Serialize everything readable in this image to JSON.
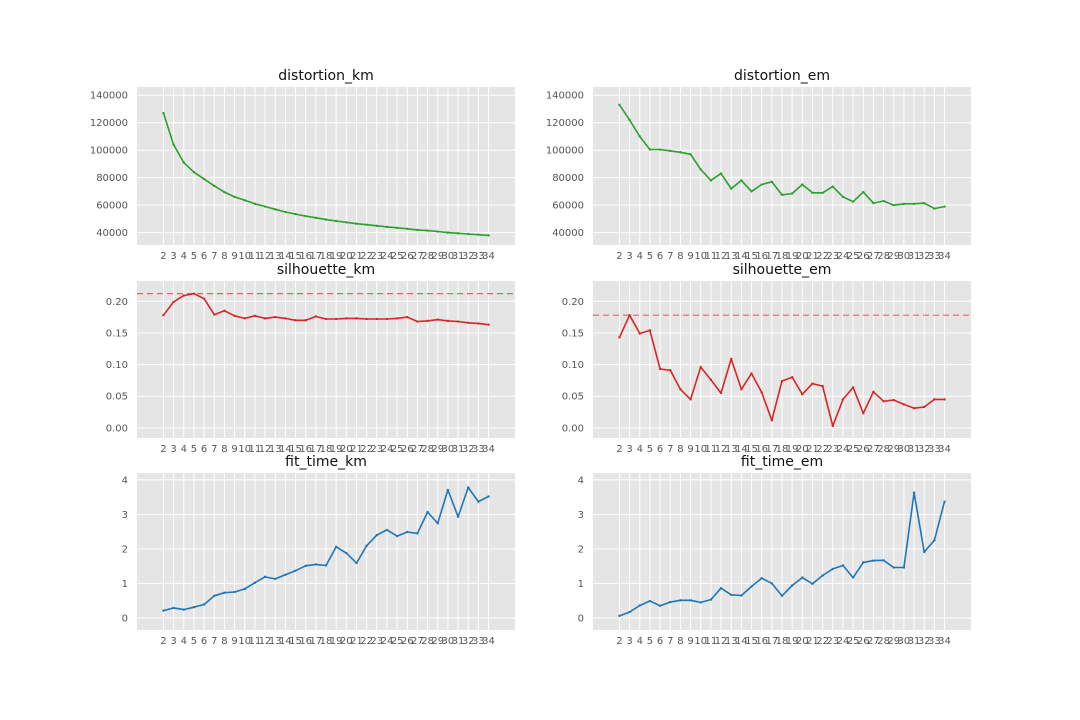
{
  "colors": {
    "axes_bg": "#E5E5E5",
    "grid": "#FFFFFF",
    "tick_text": "#555555",
    "title_text": "#111111",
    "distortion": "#2CA02C",
    "silhouette": "#D62728",
    "fit_time": "#1F77B4",
    "reference_line": "#E06666"
  },
  "chart_data": [
    {
      "type": "line",
      "title": "distortion_km",
      "x": [
        2,
        3,
        4,
        5,
        6,
        7,
        8,
        9,
        10,
        11,
        12,
        13,
        14,
        15,
        16,
        17,
        18,
        19,
        20,
        21,
        22,
        23,
        24,
        25,
        26,
        27,
        28,
        29,
        30,
        31,
        32,
        33,
        34
      ],
      "values": [
        127000,
        104000,
        91000,
        84000,
        79000,
        74000,
        69500,
        66000,
        63500,
        61000,
        59000,
        57000,
        55000,
        53500,
        52000,
        50800,
        49500,
        48500,
        47500,
        46500,
        45800,
        45000,
        44200,
        43500,
        42800,
        42000,
        41500,
        40800,
        40000,
        39500,
        39000,
        38500,
        38000
      ],
      "yticks": [
        40000,
        60000,
        80000,
        100000,
        120000,
        140000
      ],
      "ylim": [
        31000,
        146000
      ],
      "reference_line": null,
      "grid": true
    },
    {
      "type": "line",
      "title": "distortion_em",
      "x": [
        2,
        3,
        4,
        5,
        6,
        7,
        8,
        9,
        10,
        11,
        12,
        13,
        14,
        15,
        16,
        17,
        18,
        19,
        20,
        21,
        22,
        23,
        24,
        25,
        26,
        27,
        28,
        29,
        30,
        31,
        32,
        33,
        34
      ],
      "values": [
        133000,
        122000,
        110000,
        100500,
        100500,
        99500,
        98500,
        97000,
        86000,
        78000,
        83000,
        72000,
        78000,
        70000,
        75000,
        77000,
        67500,
        68500,
        75000,
        69000,
        69000,
        73500,
        66000,
        62500,
        69500,
        61500,
        63000,
        60000,
        61000,
        61000,
        61500,
        57500,
        59000
      ],
      "yticks": [
        40000,
        60000,
        80000,
        100000,
        120000,
        140000
      ],
      "ylim": [
        31000,
        146000
      ],
      "reference_line": null,
      "grid": true
    },
    {
      "type": "line",
      "title": "silhouette_km",
      "x": [
        2,
        3,
        4,
        5,
        6,
        7,
        8,
        9,
        10,
        11,
        12,
        13,
        14,
        15,
        16,
        17,
        18,
        19,
        20,
        21,
        22,
        23,
        24,
        25,
        26,
        27,
        28,
        29,
        30,
        31,
        32,
        33,
        34
      ],
      "values": [
        0.178,
        0.199,
        0.209,
        0.212,
        0.204,
        0.179,
        0.185,
        0.177,
        0.173,
        0.177,
        0.173,
        0.175,
        0.173,
        0.17,
        0.17,
        0.176,
        0.172,
        0.172,
        0.173,
        0.173,
        0.172,
        0.172,
        0.172,
        0.173,
        0.175,
        0.168,
        0.169,
        0.171,
        0.169,
        0.168,
        0.166,
        0.165,
        0.163
      ],
      "yticks": [
        0.0,
        0.05,
        0.1,
        0.15,
        0.2
      ],
      "ytick_labels": [
        "0.00",
        "0.05",
        "0.10",
        "0.15",
        "0.20"
      ],
      "ylim": [
        -0.016,
        0.232
      ],
      "reference_line": 0.212,
      "grid": true
    },
    {
      "type": "line",
      "title": "silhouette_em",
      "x": [
        2,
        3,
        4,
        5,
        6,
        7,
        8,
        9,
        10,
        11,
        12,
        13,
        14,
        15,
        16,
        17,
        18,
        19,
        20,
        21,
        22,
        23,
        24,
        25,
        26,
        27,
        28,
        29,
        30,
        31,
        32,
        33,
        34
      ],
      "values": [
        0.143,
        0.178,
        0.149,
        0.154,
        0.093,
        0.091,
        0.061,
        0.045,
        0.096,
        0.076,
        0.055,
        0.109,
        0.061,
        0.086,
        0.056,
        0.012,
        0.074,
        0.08,
        0.053,
        0.07,
        0.066,
        0.003,
        0.045,
        0.064,
        0.023,
        0.057,
        0.042,
        0.044,
        0.037,
        0.031,
        0.033,
        0.045,
        0.045
      ],
      "yticks": [
        0.0,
        0.05,
        0.1,
        0.15,
        0.2
      ],
      "ytick_labels": [
        "0.00",
        "0.05",
        "0.10",
        "0.15",
        "0.20"
      ],
      "ylim": [
        -0.016,
        0.232
      ],
      "reference_line": 0.178,
      "grid": true
    },
    {
      "type": "line",
      "title": "fit_time_km",
      "x": [
        2,
        3,
        4,
        5,
        6,
        7,
        8,
        9,
        10,
        11,
        12,
        13,
        14,
        15,
        16,
        17,
        18,
        19,
        20,
        21,
        22,
        23,
        24,
        25,
        26,
        27,
        28,
        29,
        30,
        31,
        32,
        33,
        34
      ],
      "values": [
        0.21,
        0.29,
        0.24,
        0.31,
        0.39,
        0.64,
        0.73,
        0.75,
        0.84,
        1.02,
        1.19,
        1.13,
        1.25,
        1.37,
        1.51,
        1.55,
        1.52,
        2.06,
        1.88,
        1.59,
        2.09,
        2.4,
        2.55,
        2.37,
        2.49,
        2.45,
        3.07,
        2.74,
        3.71,
        2.93,
        3.78,
        3.37,
        3.52
      ],
      "yticks": [
        0,
        1,
        2,
        3,
        4
      ],
      "ytick_labels": [
        "0",
        "1",
        "2",
        "3",
        "4"
      ],
      "ylim": [
        -0.35,
        4.2
      ],
      "reference_line": null,
      "grid": true
    },
    {
      "type": "line",
      "title": "fit_time_em",
      "x": [
        2,
        3,
        4,
        5,
        6,
        7,
        8,
        9,
        10,
        11,
        12,
        13,
        14,
        15,
        16,
        17,
        18,
        19,
        20,
        21,
        22,
        23,
        24,
        25,
        26,
        27,
        28,
        29,
        30,
        31,
        32,
        33,
        34
      ],
      "values": [
        0.06,
        0.17,
        0.36,
        0.49,
        0.35,
        0.46,
        0.51,
        0.51,
        0.45,
        0.53,
        0.86,
        0.67,
        0.65,
        0.91,
        1.15,
        1.0,
        0.64,
        0.94,
        1.17,
        0.99,
        1.23,
        1.42,
        1.52,
        1.17,
        1.61,
        1.66,
        1.67,
        1.46,
        1.46,
        3.63,
        1.91,
        2.25,
        3.37
      ],
      "yticks": [
        0,
        1,
        2,
        3,
        4
      ],
      "ytick_labels": [
        "0",
        "1",
        "2",
        "3",
        "4"
      ],
      "ylim": [
        -0.35,
        4.2
      ],
      "reference_line": null,
      "grid": true
    }
  ]
}
